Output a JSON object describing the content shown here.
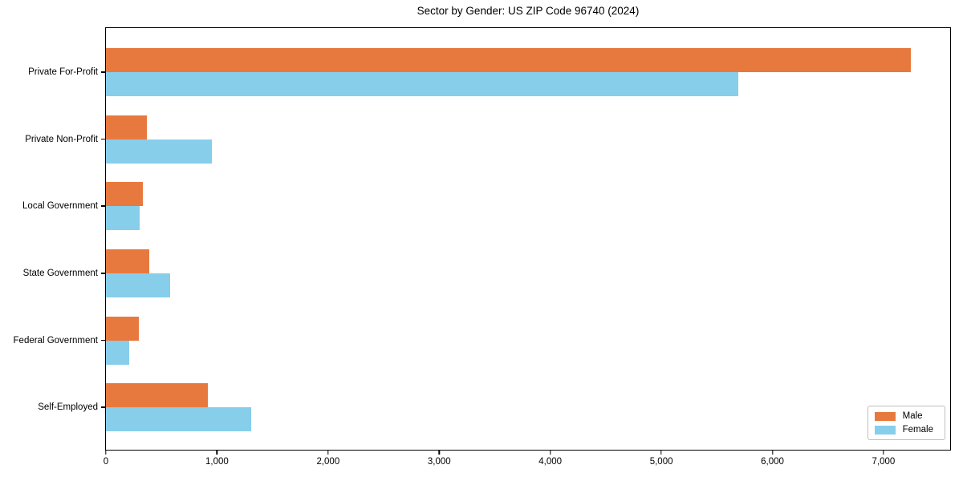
{
  "title": "Sector by Gender: US ZIP Code 96740 (2024)",
  "chart_data": {
    "type": "bar",
    "orientation": "horizontal",
    "title": "Sector by Gender: US ZIP Code 96740 (2024)",
    "xlabel": "",
    "ylabel": "",
    "categories": [
      "Private For-Profit",
      "Private Non-Profit",
      "Local Government",
      "State Government",
      "Federal Government",
      "Self-Employed"
    ],
    "series": [
      {
        "name": "Male",
        "color": "#e8793e",
        "values": [
          7245,
          365,
          335,
          390,
          295,
          915
        ]
      },
      {
        "name": "Female",
        "color": "#87ceeb",
        "values": [
          5690,
          950,
          300,
          575,
          210,
          1310
        ]
      }
    ],
    "xlim": [
      0,
      7600
    ],
    "xticks": [
      0,
      1000,
      2000,
      3000,
      4000,
      5000,
      6000,
      7000
    ],
    "xtick_labels": [
      "0",
      "1,000",
      "2,000",
      "3,000",
      "4,000",
      "5,000",
      "6,000",
      "7,000"
    ],
    "grid": false,
    "legend_position": "lower right"
  }
}
